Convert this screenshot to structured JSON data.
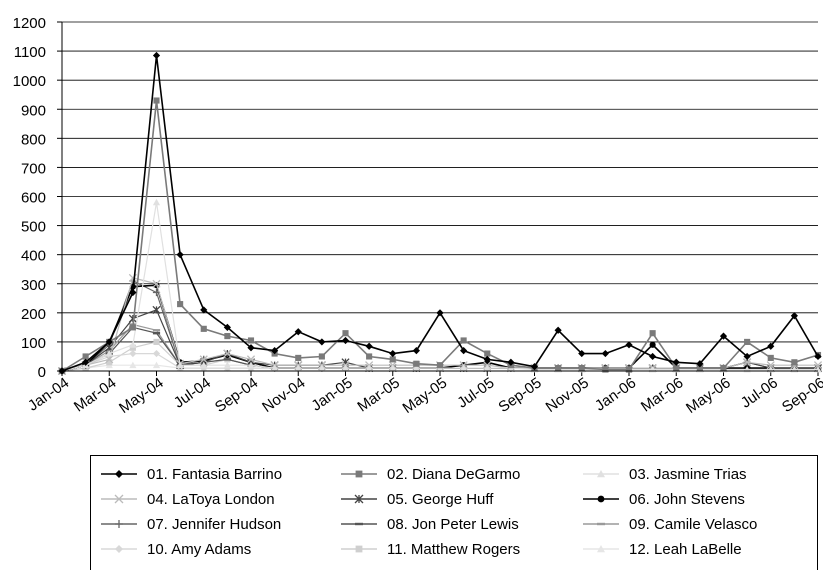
{
  "chart_data": {
    "type": "line",
    "ylim": [
      0,
      1200
    ],
    "yticks": [
      "0",
      "100",
      "200",
      "300",
      "400",
      "500",
      "600",
      "700",
      "800",
      "900",
      "1000",
      "1100",
      "1200"
    ],
    "x": [
      "Jan-04",
      "Feb-04",
      "Mar-04",
      "Apr-04",
      "May-04",
      "Jun-04",
      "Jul-04",
      "Aug-04",
      "Sep-04",
      "Oct-04",
      "Nov-04",
      "Dec-04",
      "Jan-05",
      "Feb-05",
      "Mar-05",
      "Apr-05",
      "May-05",
      "Jun-05",
      "Jul-05",
      "Aug-05",
      "Sep-05",
      "Oct-05",
      "Nov-05",
      "Dec-05",
      "Jan-06",
      "Feb-06",
      "Mar-06",
      "Apr-06",
      "May-06",
      "Jun-06",
      "Jul-06",
      "Aug-06",
      "Sep-06"
    ],
    "xtick_labels": [
      "Jan-04",
      "Mar-04",
      "May-04",
      "Jul-04",
      "Sep-04",
      "Nov-04",
      "Jan-05",
      "Mar-05",
      "May-05",
      "Jul-05",
      "Sep-05",
      "Nov-05",
      "Jan-06",
      "Mar-06",
      "May-06",
      "Jul-06",
      "Sep-06"
    ],
    "grid": "horizontal",
    "legend_position": "bottom",
    "series": [
      {
        "name": "01. Fantasia Barrino",
        "color": "#000000",
        "marker": "diamond",
        "values": [
          0,
          30,
          100,
          270,
          1085,
          400,
          210,
          150,
          80,
          70,
          135,
          100,
          105,
          85,
          60,
          70,
          200,
          70,
          40,
          30,
          15,
          140,
          60,
          60,
          90,
          50,
          30,
          25,
          120,
          50,
          85,
          190,
          50
        ]
      },
      {
        "name": "02. Diana DeGarmo",
        "color": "#7a7a7a",
        "marker": "square",
        "values": [
          0,
          50,
          100,
          150,
          930,
          230,
          145,
          120,
          105,
          60,
          45,
          50,
          130,
          50,
          40,
          25,
          20,
          105,
          60,
          20,
          10,
          10,
          10,
          5,
          5,
          130,
          10,
          10,
          10,
          100,
          45,
          30,
          55
        ]
      },
      {
        "name": "03. Jasmine Trias",
        "color": "#e0e0e0",
        "marker": "triangle",
        "values": [
          0,
          20,
          60,
          90,
          580,
          20,
          20,
          20,
          20,
          10,
          10,
          10,
          10,
          10,
          10,
          10,
          10,
          10,
          10,
          10,
          5,
          5,
          5,
          5,
          5,
          5,
          5,
          5,
          5,
          5,
          5,
          5,
          5
        ]
      },
      {
        "name": "04. LaToya London",
        "color": "#bbbbbb",
        "marker": "x",
        "values": [
          0,
          20,
          40,
          320,
          300,
          25,
          40,
          60,
          40,
          20,
          20,
          20,
          20,
          20,
          20,
          20,
          20,
          20,
          20,
          10,
          10,
          10,
          10,
          10,
          10,
          10,
          10,
          10,
          10,
          30,
          20,
          20,
          20
        ]
      },
      {
        "name": "05. George Huff",
        "color": "#444444",
        "marker": "star",
        "values": [
          0,
          20,
          80,
          180,
          210,
          20,
          30,
          60,
          30,
          20,
          20,
          20,
          30,
          10,
          10,
          10,
          10,
          10,
          10,
          10,
          10,
          10,
          10,
          10,
          10,
          10,
          10,
          10,
          10,
          30,
          10,
          10,
          10
        ]
      },
      {
        "name": "06. John Stevens",
        "color": "#000000",
        "marker": "circle",
        "values": [
          0,
          20,
          100,
          290,
          295,
          30,
          35,
          55,
          30,
          10,
          10,
          10,
          10,
          10,
          10,
          10,
          10,
          20,
          30,
          10,
          10,
          10,
          10,
          10,
          10,
          90,
          10,
          10,
          10,
          10,
          10,
          10,
          10
        ]
      },
      {
        "name": "07. Jennifer Hudson",
        "color": "#666666",
        "marker": "plus",
        "values": [
          0,
          20,
          90,
          310,
          270,
          20,
          40,
          55,
          30,
          10,
          10,
          10,
          10,
          10,
          10,
          10,
          10,
          10,
          10,
          10,
          10,
          10,
          10,
          10,
          10,
          10,
          10,
          10,
          10,
          30,
          10,
          10,
          10
        ]
      },
      {
        "name": "08. Jon Peter Lewis",
        "color": "#555555",
        "marker": "dash",
        "values": [
          0,
          20,
          60,
          150,
          130,
          20,
          30,
          40,
          20,
          10,
          10,
          10,
          10,
          10,
          10,
          10,
          10,
          10,
          10,
          10,
          10,
          10,
          10,
          10,
          10,
          10,
          10,
          10,
          10,
          10,
          10,
          10,
          10
        ]
      },
      {
        "name": "09. Camile Velasco",
        "color": "#9a9a9a",
        "marker": "dash",
        "values": [
          0,
          20,
          70,
          160,
          140,
          20,
          30,
          40,
          20,
          10,
          10,
          10,
          10,
          10,
          10,
          10,
          10,
          10,
          10,
          10,
          10,
          10,
          10,
          10,
          10,
          10,
          10,
          10,
          10,
          10,
          10,
          10,
          10
        ]
      },
      {
        "name": "10. Amy Adams",
        "color": "#d8d8d8",
        "marker": "diamond",
        "values": [
          0,
          20,
          50,
          60,
          60,
          10,
          10,
          10,
          10,
          10,
          10,
          10,
          10,
          10,
          10,
          10,
          10,
          10,
          10,
          10,
          10,
          10,
          10,
          10,
          10,
          10,
          10,
          10,
          10,
          10,
          10,
          10,
          10
        ]
      },
      {
        "name": "11. Matthew Rogers",
        "color": "#cfcfcf",
        "marker": "square",
        "values": [
          0,
          10,
          30,
          80,
          100,
          20,
          20,
          40,
          20,
          10,
          10,
          10,
          10,
          10,
          10,
          10,
          10,
          10,
          10,
          10,
          10,
          10,
          10,
          10,
          10,
          10,
          10,
          10,
          10,
          10,
          10,
          10,
          10
        ]
      },
      {
        "name": "12. Leah LaBelle",
        "color": "#e6e6e6",
        "marker": "triangle",
        "values": [
          0,
          10,
          20,
          20,
          20,
          10,
          10,
          10,
          10,
          10,
          10,
          10,
          10,
          10,
          10,
          10,
          10,
          10,
          10,
          10,
          10,
          10,
          10,
          10,
          10,
          10,
          10,
          10,
          10,
          10,
          10,
          10,
          10
        ]
      }
    ]
  }
}
